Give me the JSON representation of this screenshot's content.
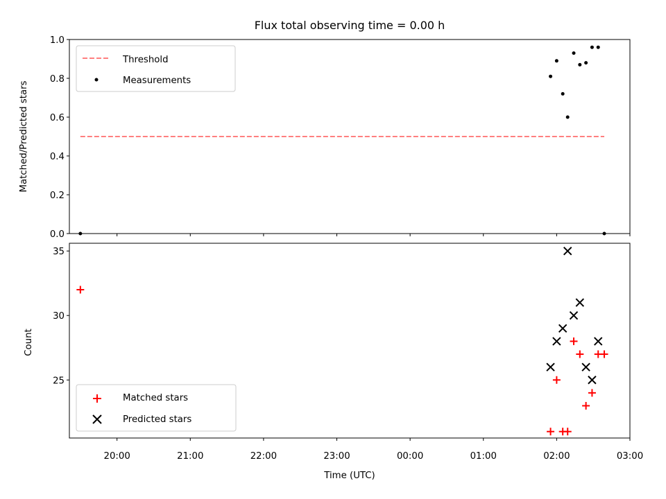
{
  "chart_data": [
    {
      "type": "scatter",
      "title": "Flux total observing time = 0.00 h",
      "ylabel": "Matched/Predicted stars",
      "xlabel": "",
      "xlim": [
        "19:21",
        "03:00"
      ],
      "ylim": [
        0,
        1.0
      ],
      "yticks": [
        "0.0",
        "0.2",
        "0.4",
        "0.6",
        "0.8",
        "1.0"
      ],
      "legend": {
        "placement": "top-left",
        "entries": [
          "Threshold",
          "Measurements"
        ]
      },
      "threshold": {
        "name": "Threshold",
        "value": 0.5,
        "x_start": "19:30",
        "x_end": "02:39",
        "color": "#ff7f7f",
        "style": "dashed"
      },
      "series": [
        {
          "name": "Measurements",
          "color": "#000000",
          "marker": "dot",
          "points": [
            {
              "x": "19:30",
              "y": 0.0
            },
            {
              "x": "01:55",
              "y": 0.81
            },
            {
              "x": "02:00",
              "y": 0.89
            },
            {
              "x": "02:05",
              "y": 0.72
            },
            {
              "x": "02:09",
              "y": 0.6
            },
            {
              "x": "02:14",
              "y": 0.93
            },
            {
              "x": "02:19",
              "y": 0.87
            },
            {
              "x": "02:24",
              "y": 0.88
            },
            {
              "x": "02:29",
              "y": 0.96
            },
            {
              "x": "02:34",
              "y": 0.96
            },
            {
              "x": "02:39",
              "y": 0.0
            }
          ]
        }
      ]
    },
    {
      "type": "scatter",
      "title": "",
      "xlabel": "Time (UTC)",
      "ylabel": "Count",
      "xlim": [
        "19:21",
        "03:00"
      ],
      "ylim": [
        20.5,
        35.6
      ],
      "yticks": [
        "25",
        "30",
        "35"
      ],
      "xticks": [
        "20:00",
        "21:00",
        "22:00",
        "23:00",
        "00:00",
        "01:00",
        "02:00",
        "03:00"
      ],
      "legend": {
        "placement": "bottom-left",
        "entries": [
          "Matched stars",
          "Predicted stars"
        ]
      },
      "series": [
        {
          "name": "Matched stars",
          "color": "#ff0000",
          "marker": "plus",
          "points": [
            {
              "x": "19:30",
              "y": 32
            },
            {
              "x": "01:55",
              "y": 21
            },
            {
              "x": "02:00",
              "y": 25
            },
            {
              "x": "02:05",
              "y": 21
            },
            {
              "x": "02:09",
              "y": 21
            },
            {
              "x": "02:14",
              "y": 28
            },
            {
              "x": "02:19",
              "y": 27
            },
            {
              "x": "02:24",
              "y": 23
            },
            {
              "x": "02:29",
              "y": 24
            },
            {
              "x": "02:34",
              "y": 27
            },
            {
              "x": "02:39",
              "y": 27
            }
          ]
        },
        {
          "name": "Predicted stars",
          "color": "#000000",
          "marker": "x",
          "points": [
            {
              "x": "01:55",
              "y": 26
            },
            {
              "x": "02:00",
              "y": 28
            },
            {
              "x": "02:05",
              "y": 29
            },
            {
              "x": "02:09",
              "y": 35
            },
            {
              "x": "02:14",
              "y": 30
            },
            {
              "x": "02:19",
              "y": 31
            },
            {
              "x": "02:24",
              "y": 26
            },
            {
              "x": "02:29",
              "y": 25
            },
            {
              "x": "02:34",
              "y": 28
            }
          ]
        }
      ]
    }
  ]
}
